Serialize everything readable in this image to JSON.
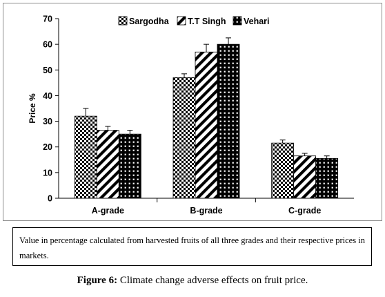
{
  "chart_data": {
    "type": "bar",
    "categories": [
      "A-grade",
      "B-grade",
      "C-grade"
    ],
    "series": [
      {
        "name": "Sargodha",
        "values": [
          32,
          47,
          21.5
        ],
        "errors": [
          3,
          1.5,
          1.2
        ],
        "pattern": "checker"
      },
      {
        "name": "T.T Singh",
        "values": [
          26.5,
          57,
          16.5
        ],
        "errors": [
          1.5,
          3,
          1
        ],
        "pattern": "diagonal"
      },
      {
        "name": "Vehari",
        "values": [
          25,
          60,
          15.5
        ],
        "errors": [
          1.5,
          2.5,
          1
        ],
        "pattern": "dots"
      }
    ],
    "ylabel": "Price %",
    "xlabel": "",
    "ylim": [
      0,
      70
    ],
    "yticks": [
      "0",
      "10",
      "20",
      "30",
      "40",
      "50",
      "60",
      "70"
    ],
    "grid": false,
    "legend_position": "top-center"
  },
  "caption_text": "Value in percentage calculated from harvested fruits of all three grades and their respective prices in markets.",
  "figure": {
    "label": "Figure 6:",
    "text": "Climate change adverse effects on fruit price."
  }
}
